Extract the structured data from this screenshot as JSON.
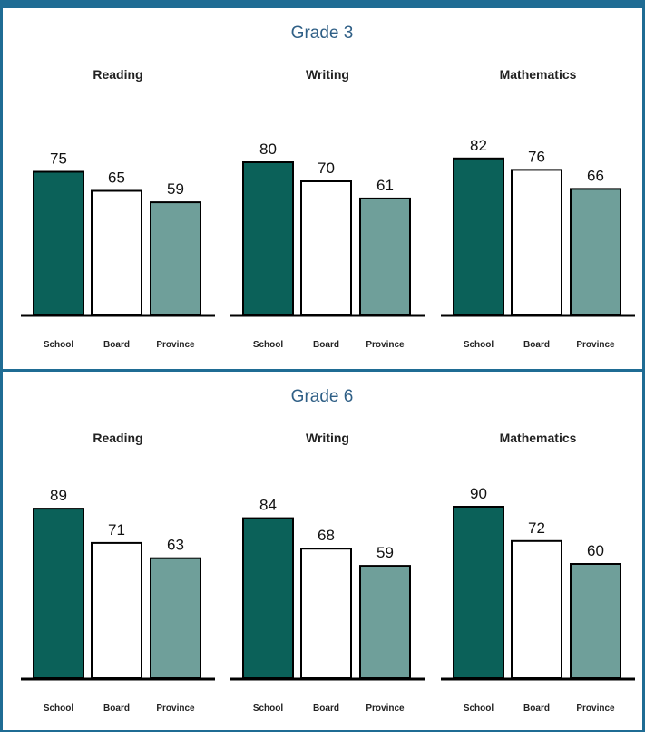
{
  "colors": {
    "frame": "#1f6c94",
    "grade_title": "#2f5f86",
    "school": "#0b6159",
    "board": "#ffffff",
    "province": "#6f9f9a",
    "bar_outline": "#000000"
  },
  "chart_data": [
    {
      "type": "bar",
      "title": "Grade 3",
      "categories": [
        "School",
        "Board",
        "Province"
      ],
      "ylim": [
        0,
        100
      ],
      "panels": [
        {
          "subject": "Reading",
          "values": [
            75,
            65,
            59
          ]
        },
        {
          "subject": "Writing",
          "values": [
            80,
            70,
            61
          ]
        },
        {
          "subject": "Mathematics",
          "values": [
            82,
            76,
            66
          ]
        }
      ]
    },
    {
      "type": "bar",
      "title": "Grade 6",
      "categories": [
        "School",
        "Board",
        "Province"
      ],
      "ylim": [
        0,
        100
      ],
      "panels": [
        {
          "subject": "Reading",
          "values": [
            89,
            71,
            63
          ]
        },
        {
          "subject": "Writing",
          "values": [
            84,
            68,
            59
          ]
        },
        {
          "subject": "Mathematics",
          "values": [
            90,
            72,
            60
          ]
        }
      ]
    }
  ]
}
